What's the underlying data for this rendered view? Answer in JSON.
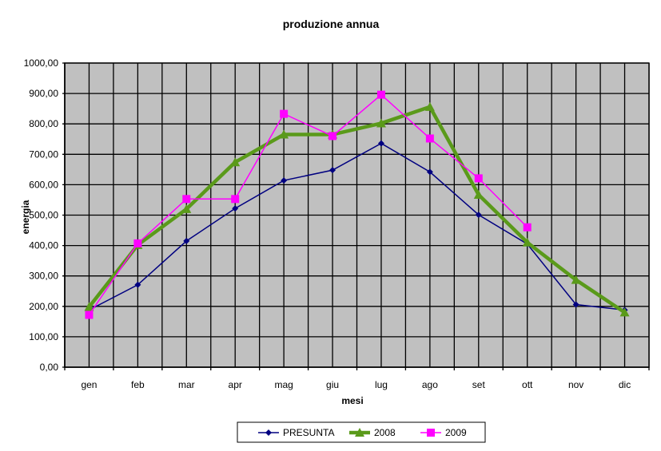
{
  "chart_data": {
    "type": "line",
    "title": "produzione annua",
    "xlabel": "mesi",
    "ylabel": "energia",
    "ylim": [
      0,
      1000
    ],
    "yticks": [
      "0,00",
      "100,00",
      "200,00",
      "300,00",
      "400,00",
      "500,00",
      "600,00",
      "700,00",
      "800,00",
      "900,00",
      "1000,00"
    ],
    "grid": true,
    "legend_position": "bottom",
    "categories": [
      "gen",
      "feb",
      "mar",
      "apr",
      "mag",
      "giu",
      "lug",
      "ago",
      "set",
      "ott",
      "nov",
      "dic"
    ],
    "series": [
      {
        "name": "PRESUNTA",
        "color": "#000080",
        "marker": "diamond",
        "values": [
          188,
          271,
          415,
          522,
          614,
          648,
          736,
          642,
          501,
          405,
          206,
          188
        ]
      },
      {
        "name": "2008",
        "color": "#5a9a1a",
        "marker": "triangle",
        "values": [
          198,
          402,
          520,
          674,
          765,
          765,
          802,
          856,
          567,
          410,
          287,
          180
        ]
      },
      {
        "name": "2009",
        "color": "#ff00ff",
        "marker": "square",
        "values": [
          172,
          407,
          553,
          553,
          833,
          760,
          896,
          752,
          621,
          460,
          null,
          null
        ]
      }
    ]
  }
}
